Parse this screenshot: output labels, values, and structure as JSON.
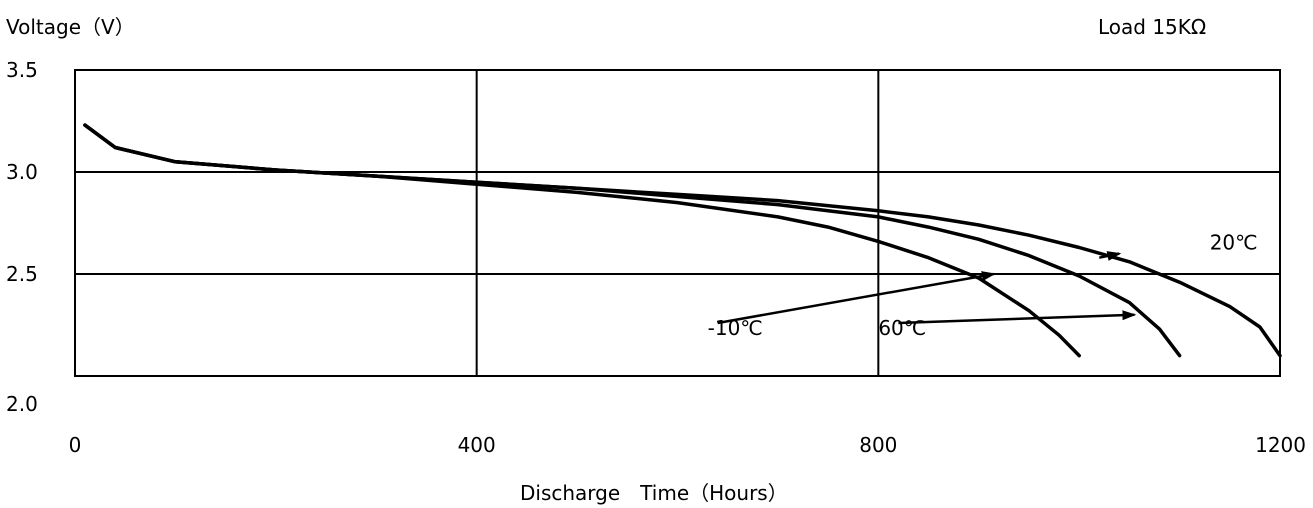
{
  "chart_data": {
    "type": "line",
    "ylabel": "Voltage（V）",
    "xlabel": "Discharge　Time（Hours）",
    "annotation": "Load 15KΩ",
    "xlim": [
      0,
      1200
    ],
    "ylim": [
      2.0,
      3.5
    ],
    "x_ticks": [
      "0",
      "400",
      "800",
      "1200"
    ],
    "y_ticks": [
      "3.5",
      "3.0",
      "2.5",
      "2.0"
    ],
    "grid": true,
    "series": [
      {
        "name": "20℃",
        "x": [
          10,
          40,
          100,
          200,
          300,
          400,
          500,
          600,
          700,
          800,
          850,
          900,
          950,
          1000,
          1050,
          1100,
          1150,
          1180,
          1200
        ],
        "y": [
          3.23,
          3.12,
          3.05,
          3.01,
          2.98,
          2.95,
          2.92,
          2.89,
          2.86,
          2.81,
          2.78,
          2.74,
          2.69,
          2.63,
          2.56,
          2.46,
          2.34,
          2.24,
          2.1
        ]
      },
      {
        "name": "60℃",
        "x": [
          10,
          40,
          100,
          200,
          300,
          400,
          500,
          600,
          700,
          800,
          850,
          900,
          950,
          1000,
          1050,
          1080,
          1100
        ],
        "y": [
          3.23,
          3.12,
          3.05,
          3.01,
          2.98,
          2.95,
          2.92,
          2.88,
          2.84,
          2.78,
          2.73,
          2.67,
          2.59,
          2.49,
          2.36,
          2.23,
          2.1
        ]
      },
      {
        "name": "-10℃",
        "x": [
          10,
          40,
          100,
          200,
          300,
          400,
          500,
          600,
          700,
          750,
          800,
          850,
          900,
          950,
          980,
          1000
        ],
        "y": [
          3.23,
          3.12,
          3.05,
          3.01,
          2.98,
          2.94,
          2.9,
          2.85,
          2.78,
          2.73,
          2.66,
          2.58,
          2.48,
          2.32,
          2.2,
          2.1
        ]
      }
    ],
    "labels": [
      {
        "series": "20℃",
        "text": "20℃",
        "at": [
          1020,
          2.58
        ],
        "arrow_to": [
          1040,
          2.6
        ]
      },
      {
        "series": "60℃",
        "text": "60℃",
        "at": [
          820,
          2.26
        ],
        "arrow_to": [
          1055,
          2.3
        ]
      },
      {
        "series": "-10℃",
        "text": "-10℃",
        "at": [
          640,
          2.26
        ],
        "arrow_to": [
          915,
          2.5
        ]
      }
    ],
    "line_color": "#000000",
    "label_positions": [
      [
        1130,
        2.62
      ],
      [
        800,
        2.2
      ],
      [
        630,
        2.2
      ]
    ]
  }
}
